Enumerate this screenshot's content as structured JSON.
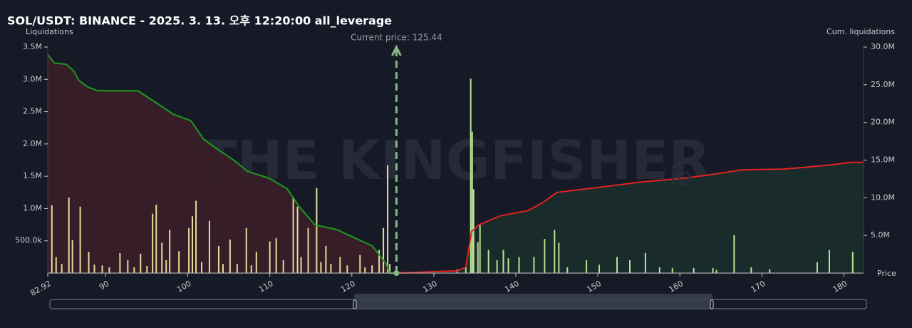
{
  "chart_data": {
    "type": "bar",
    "title": "SOL/USDT: BINANCE - 2025. 3. 13. 오후 12:20:00 all_leverage",
    "y_label": "Liquidations",
    "y2_label": "Cum. liquidations",
    "x_label": "Price",
    "watermark": "THE KINGFISHER",
    "watermark_suffix": ".io",
    "current_price": 125.44,
    "current_price_label": "Current price: 125.44",
    "current_price_color": "#86b886",
    "xlim": [
      82.92,
      182.4
    ],
    "xticks": [
      82.92,
      90,
      100,
      110,
      120,
      130,
      140,
      150,
      160,
      170,
      180
    ],
    "ylim": [
      0,
      3500000
    ],
    "yticks": [
      {
        "value": 500000,
        "label": "500.0k"
      },
      {
        "value": 1000000,
        "label": "1.0M"
      },
      {
        "value": 1500000,
        "label": "1.5M"
      },
      {
        "value": 2000000,
        "label": "2.0M"
      },
      {
        "value": 2500000,
        "label": "2.5M"
      },
      {
        "value": 3000000,
        "label": "3.0M"
      },
      {
        "value": 3500000,
        "label": "3.5M"
      }
    ],
    "y2lim": [
      0,
      30000000
    ],
    "y2ticks": [
      {
        "value": 5000000,
        "label": "5.0M"
      },
      {
        "value": 10000000,
        "label": "10.0M"
      },
      {
        "value": 15000000,
        "label": "15.0M"
      },
      {
        "value": 20000000,
        "label": "20.0M"
      },
      {
        "value": 25000000,
        "label": "25.0M"
      },
      {
        "value": 30000000,
        "label": "30.0M"
      }
    ],
    "series": [
      {
        "type": "bar",
        "color": "#e3df9c",
        "x": [
          83.42,
          83.94,
          84.63,
          85.5,
          85.93,
          86.88,
          87.92,
          88.61,
          89.57,
          90.43,
          91.73,
          92.68,
          93.46,
          94.24,
          95.02,
          95.71,
          96.15,
          96.84,
          97.36,
          97.79,
          98.92,
          100.13,
          100.56,
          101.0,
          101.69,
          102.64,
          103.77,
          104.29,
          105.15,
          106.02,
          107.14,
          107.75,
          108.36,
          110.0,
          110.78,
          111.65,
          112.86,
          113.38,
          113.81,
          114.68,
          115.71,
          116.23,
          116.84,
          117.45,
          118.57,
          119.44,
          121.0,
          121.6,
          122.47,
          123.33,
          123.85,
          124.37,
          124.63
        ],
        "values": [
          1050000,
          250000,
          140000,
          1170000,
          510000,
          1030000,
          330000,
          130000,
          120000,
          90000,
          310000,
          200000,
          90000,
          300000,
          110000,
          920000,
          1060000,
          470000,
          200000,
          670000,
          340000,
          700000,
          880000,
          1120000,
          170000,
          810000,
          420000,
          140000,
          520000,
          140000,
          700000,
          120000,
          330000,
          490000,
          540000,
          200000,
          1180000,
          1030000,
          250000,
          700000,
          1320000,
          170000,
          420000,
          140000,
          250000,
          120000,
          280000,
          90000,
          120000,
          360000,
          700000,
          1670000,
          140000
        ]
      },
      {
        "type": "bar",
        "color": "#b9e394",
        "x": [
          132.86,
          133.9,
          134.5,
          134.68,
          134.85,
          135.37,
          135.63,
          136.67,
          137.71,
          138.48,
          139.09,
          140.39,
          142.21,
          143.51,
          144.72,
          145.24,
          146.28,
          148.61,
          150.17,
          152.34,
          153.9,
          155.8,
          157.53,
          159.09,
          161.69,
          164.03,
          164.46,
          166.62,
          168.7,
          170.95,
          176.75,
          178.23,
          181.08
        ],
        "values": [
          60000,
          90000,
          3010000,
          2190000,
          1300000,
          480000,
          750000,
          360000,
          200000,
          360000,
          230000,
          250000,
          250000,
          530000,
          670000,
          470000,
          90000,
          200000,
          130000,
          250000,
          200000,
          310000,
          90000,
          80000,
          80000,
          80000,
          50000,
          590000,
          90000,
          60000,
          170000,
          360000,
          330000
        ]
      },
      {
        "type": "line",
        "axis": "y2",
        "color": "#1f9a1f",
        "fill": "#3a1e29",
        "x": [
          82.92,
          83.7,
          85.2,
          86.1,
          86.7,
          87.8,
          89.0,
          93.9,
          96.3,
          98.2,
          100.4,
          101.9,
          103.4,
          105.6,
          107.3,
          109.9,
          112.1,
          113.6,
          115.5,
          118.1,
          120.7,
          122.5,
          124.2,
          124.6,
          125.44
        ],
        "values": [
          29000000,
          27900000,
          27700000,
          26800000,
          25600000,
          24700000,
          24200000,
          24200000,
          22500000,
          21100000,
          20200000,
          17800000,
          16600000,
          15000000,
          13500000,
          12600000,
          11200000,
          8800000,
          6400000,
          5800000,
          4500000,
          3600000,
          1200000,
          0,
          0
        ]
      },
      {
        "type": "line",
        "axis": "y2",
        "color": "#e02222",
        "fill": "#1a2e2b",
        "x": [
          125.44,
          132.9,
          133.9,
          134.6,
          135.5,
          138.1,
          141.5,
          143.2,
          145.0,
          151.0,
          155.4,
          160.6,
          164.0,
          167.5,
          172.7,
          177.9,
          180.9,
          182.4
        ],
        "values": [
          0,
          300000,
          800000,
          5500000,
          6400000,
          7600000,
          8300000,
          9300000,
          10700000,
          11500000,
          12100000,
          12600000,
          13100000,
          13700000,
          13800000,
          14300000,
          14700000,
          14700000
        ]
      }
    ]
  }
}
